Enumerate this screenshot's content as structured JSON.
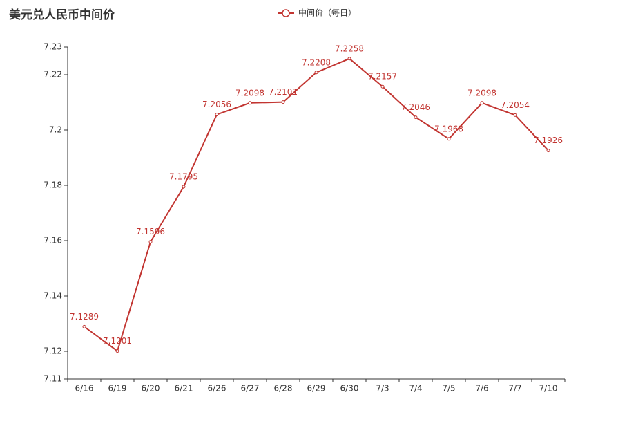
{
  "chart_data": {
    "type": "line",
    "title": "美元兑人民币中间价",
    "categories": [
      "6/16",
      "6/19",
      "6/20",
      "6/21",
      "6/26",
      "6/27",
      "6/28",
      "6/29",
      "6/30",
      "7/3",
      "7/4",
      "7/5",
      "7/6",
      "7/7",
      "7/10"
    ],
    "series": [
      {
        "name": "中间价（每日）",
        "color": "#c23531",
        "values": [
          7.1289,
          7.1201,
          7.1596,
          7.1795,
          7.2056,
          7.2098,
          7.2101,
          7.2208,
          7.2258,
          7.2157,
          7.2046,
          7.1968,
          7.2098,
          7.2054,
          7.1926
        ]
      }
    ],
    "ylim": [
      7.11,
      7.23
    ],
    "yticks": [
      7.11,
      7.12,
      7.14,
      7.16,
      7.18,
      7.2,
      7.22,
      7.23
    ]
  }
}
